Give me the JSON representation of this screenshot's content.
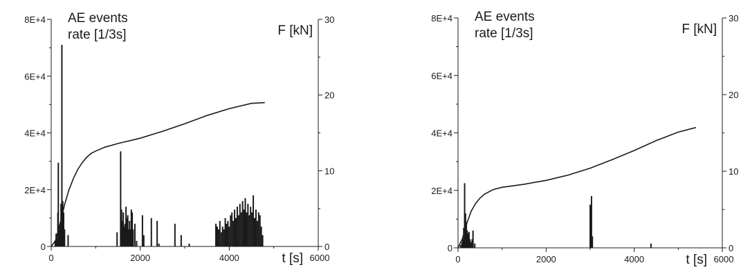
{
  "chart_data": [
    {
      "type": "bar",
      "title_lines": [
        "AE events",
        "rate [1/3s]"
      ],
      "xlabel": "t [s]",
      "ylabel_right": "F [kN]",
      "xlim": [
        0,
        6000
      ],
      "ylim": [
        0,
        80000
      ],
      "y2lim": [
        0,
        30
      ],
      "x_ticks": [
        0,
        2000,
        4000,
        6000
      ],
      "x_tick_labels": [
        "0",
        "2000",
        "4000",
        "6000"
      ],
      "y_ticks": [
        0,
        20000,
        40000,
        60000,
        80000
      ],
      "y_tick_labels": [
        "0",
        "2E+4",
        "4E+4",
        "6E+4",
        "8E+4"
      ],
      "y2_ticks": [
        0,
        10,
        20,
        30
      ],
      "y2_tick_labels": [
        "0",
        "10",
        "20",
        "30"
      ],
      "bar_color": "#1a1a1a",
      "series": [
        {
          "kind": "bar",
          "points": [
            [
              90,
              2000
            ],
            [
              110,
              4500
            ],
            [
              130,
              3000
            ],
            [
              150,
              12000
            ],
            [
              160,
              29500
            ],
            [
              180,
              6000
            ],
            [
              200,
              8000
            ],
            [
              220,
              15000
            ],
            [
              240,
              71000
            ],
            [
              260,
              16000
            ],
            [
              280,
              12000
            ],
            [
              300,
              6000
            ],
            [
              380,
              4000
            ],
            [
              1480,
              5000
            ],
            [
              1560,
              33500
            ],
            [
              1580,
              13000
            ],
            [
              1600,
              9000
            ],
            [
              1620,
              12000
            ],
            [
              1640,
              7000
            ],
            [
              1660,
              8000
            ],
            [
              1680,
              14000
            ],
            [
              1700,
              10000
            ],
            [
              1720,
              11000
            ],
            [
              1740,
              6000
            ],
            [
              1760,
              9000
            ],
            [
              1780,
              6000
            ],
            [
              1800,
              13000
            ],
            [
              1820,
              12000
            ],
            [
              1840,
              6000
            ],
            [
              1880,
              8000
            ],
            [
              1920,
              2000
            ],
            [
              2050,
              11000
            ],
            [
              2080,
              4000
            ],
            [
              2250,
              10000
            ],
            [
              2380,
              9000
            ],
            [
              2420,
              1000
            ],
            [
              2780,
              8000
            ],
            [
              2920,
              4000
            ],
            [
              3100,
              1000
            ],
            [
              3700,
              8000
            ],
            [
              3730,
              7000
            ],
            [
              3760,
              6000
            ],
            [
              3790,
              9000
            ],
            [
              3820,
              5000
            ],
            [
              3850,
              7000
            ],
            [
              3880,
              6000
            ],
            [
              3910,
              10000
            ],
            [
              3940,
              8000
            ],
            [
              3970,
              9000
            ],
            [
              4000,
              7000
            ],
            [
              4030,
              11000
            ],
            [
              4060,
              12000
            ],
            [
              4090,
              9000
            ],
            [
              4120,
              13000
            ],
            [
              4150,
              10000
            ],
            [
              4180,
              14000
            ],
            [
              4210,
              11000
            ],
            [
              4240,
              15000
            ],
            [
              4270,
              12000
            ],
            [
              4300,
              16000
            ],
            [
              4330,
              13000
            ],
            [
              4360,
              17000
            ],
            [
              4390,
              12000
            ],
            [
              4420,
              15000
            ],
            [
              4450,
              11000
            ],
            [
              4480,
              14000
            ],
            [
              4510,
              12000
            ],
            [
              4540,
              18000
            ],
            [
              4570,
              10000
            ],
            [
              4600,
              13000
            ],
            [
              4630,
              9000
            ],
            [
              4660,
              12000
            ],
            [
              4690,
              11000
            ],
            [
              4720,
              7000
            ],
            [
              4750,
              4000
            ]
          ]
        },
        {
          "kind": "line",
          "axis": "right",
          "points": [
            [
              0,
              0
            ],
            [
              100,
              0.8
            ],
            [
              200,
              3
            ],
            [
              300,
              5.5
            ],
            [
              400,
              7.5
            ],
            [
              500,
              9
            ],
            [
              600,
              10.2
            ],
            [
              700,
              11.1
            ],
            [
              800,
              11.8
            ],
            [
              900,
              12.3
            ],
            [
              1000,
              12.6
            ],
            [
              1200,
              13.1
            ],
            [
              1500,
              13.6
            ],
            [
              2000,
              14.3
            ],
            [
              2500,
              15.2
            ],
            [
              3000,
              16.2
            ],
            [
              3500,
              17.3
            ],
            [
              4000,
              18.2
            ],
            [
              4500,
              18.9
            ],
            [
              4800,
              19.0
            ]
          ]
        }
      ]
    },
    {
      "type": "bar",
      "title_lines": [
        "AE events",
        "rate [1/3s]"
      ],
      "xlabel": "t [s]",
      "ylabel_right": "F [kN]",
      "xlim": [
        0,
        6000
      ],
      "ylim": [
        0,
        80000
      ],
      "y2lim": [
        0,
        30
      ],
      "x_ticks": [
        0,
        2000,
        4000,
        6000
      ],
      "x_tick_labels": [
        "0",
        "2000",
        "4000",
        "6000"
      ],
      "y_ticks": [
        0,
        20000,
        40000,
        60000,
        80000
      ],
      "y_tick_labels": [
        "0",
        "2E+4",
        "4E+4",
        "6E+4",
        "8E+4"
      ],
      "y2_ticks": [
        0,
        10,
        20,
        30
      ],
      "y2_tick_labels": [
        "0",
        "10",
        "20",
        "30"
      ],
      "bar_color": "#1a1a1a",
      "series": [
        {
          "kind": "bar",
          "points": [
            [
              60,
              1000
            ],
            [
              90,
              2000
            ],
            [
              110,
              3000
            ],
            [
              130,
              7000
            ],
            [
              150,
              22500
            ],
            [
              170,
              12000
            ],
            [
              190,
              9000
            ],
            [
              210,
              6000
            ],
            [
              230,
              5000
            ],
            [
              250,
              5500
            ],
            [
              270,
              3000
            ],
            [
              290,
              2000
            ],
            [
              320,
              3000
            ],
            [
              340,
              6000
            ],
            [
              380,
              1500
            ],
            [
              3000,
              15000
            ],
            [
              3030,
              18000
            ],
            [
              3050,
              4000
            ],
            [
              4380,
              1500
            ]
          ]
        },
        {
          "kind": "line",
          "axis": "right",
          "points": [
            [
              0,
              0
            ],
            [
              100,
              1.2
            ],
            [
              200,
              3.2
            ],
            [
              300,
              4.8
            ],
            [
              400,
              5.8
            ],
            [
              500,
              6.5
            ],
            [
              600,
              7.0
            ],
            [
              800,
              7.6
            ],
            [
              1000,
              7.9
            ],
            [
              1500,
              8.3
            ],
            [
              2000,
              8.8
            ],
            [
              2500,
              9.5
            ],
            [
              3000,
              10.4
            ],
            [
              3500,
              11.5
            ],
            [
              4000,
              12.7
            ],
            [
              4500,
              14.0
            ],
            [
              5000,
              15.1
            ],
            [
              5400,
              15.7
            ]
          ]
        }
      ]
    }
  ]
}
